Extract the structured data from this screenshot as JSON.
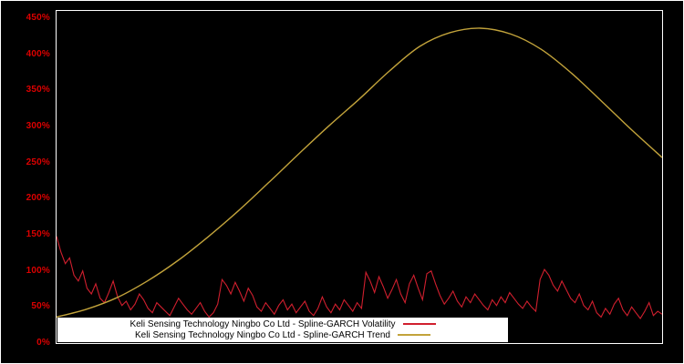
{
  "chart_data": {
    "type": "line",
    "title": "",
    "xlabel": "",
    "ylabel": "",
    "ylim": [
      0,
      460
    ],
    "yticks": [
      0,
      50,
      100,
      150,
      200,
      250,
      300,
      350,
      400,
      450
    ],
    "ytick_suffix": "%",
    "grid": false,
    "background": "#000000",
    "plot_border_color": "#ffffff",
    "axis_label_color": "#dd0000",
    "legend": {
      "position": "bottom-center",
      "background": "#ffffff",
      "entries": [
        {
          "label": "Keli Sensing Technology Ningbo Co Ltd - Spline-GARCH Volatility",
          "color": "#d01f2e"
        },
        {
          "label": "Keli Sensing Technology Ningbo Co Ltd - Spline-GARCH Trend",
          "color": "#c2a33b"
        }
      ]
    },
    "series": [
      {
        "name": "Spline-GARCH Volatility",
        "color": "#d01f2e",
        "unit": "%",
        "values": [
          148,
          126,
          110,
          118,
          94,
          86,
          100,
          76,
          68,
          82,
          62,
          56,
          70,
          86,
          64,
          52,
          58,
          46,
          54,
          68,
          60,
          48,
          42,
          56,
          50,
          44,
          38,
          50,
          62,
          54,
          46,
          40,
          48,
          56,
          44,
          36,
          42,
          54,
          88,
          80,
          68,
          84,
          72,
          58,
          76,
          66,
          50,
          44,
          56,
          48,
          40,
          52,
          60,
          46,
          54,
          42,
          50,
          58,
          44,
          38,
          48,
          64,
          50,
          42,
          54,
          46,
          60,
          52,
          44,
          56,
          48,
          98,
          86,
          70,
          92,
          78,
          62,
          74,
          88,
          68,
          56,
          82,
          94,
          76,
          60,
          96,
          100,
          82,
          66,
          54,
          62,
          72,
          58,
          50,
          64,
          56,
          68,
          60,
          52,
          46,
          60,
          52,
          64,
          56,
          70,
          62,
          54,
          48,
          58,
          50,
          44,
          88,
          102,
          94,
          80,
          72,
          86,
          74,
          62,
          56,
          68,
          52,
          46,
          58,
          42,
          36,
          48,
          40,
          54,
          62,
          46,
          38,
          50,
          42,
          34,
          44,
          56,
          38,
          44,
          40
        ]
      },
      {
        "name": "Spline-GARCH Trend",
        "color": "#c2a33b",
        "unit": "%",
        "points": [
          [
            0.0,
            36
          ],
          [
            0.05,
            47
          ],
          [
            0.1,
            63
          ],
          [
            0.15,
            86
          ],
          [
            0.2,
            114
          ],
          [
            0.25,
            147
          ],
          [
            0.3,
            183
          ],
          [
            0.35,
            222
          ],
          [
            0.4,
            262
          ],
          [
            0.45,
            301
          ],
          [
            0.5,
            338
          ],
          [
            0.55,
            377
          ],
          [
            0.6,
            411
          ],
          [
            0.65,
            430
          ],
          [
            0.7,
            436
          ],
          [
            0.75,
            428
          ],
          [
            0.8,
            407
          ],
          [
            0.85,
            374
          ],
          [
            0.9,
            335
          ],
          [
            0.95,
            295
          ],
          [
            1.0,
            257
          ]
        ]
      }
    ]
  }
}
